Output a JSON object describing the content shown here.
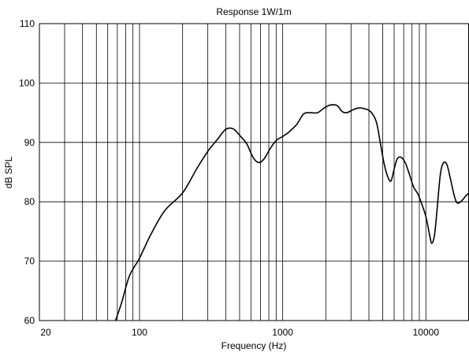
{
  "chart_data": {
    "type": "line",
    "title": "Response 1W/1m",
    "xlabel": "Frequency (Hz)",
    "ylabel": "dB SPL",
    "xscale": "log",
    "xlim": [
      20,
      20000
    ],
    "ylim": [
      60,
      110
    ],
    "grid": true,
    "x_tick_labels": [
      "20",
      "100",
      "1000",
      "10000"
    ],
    "y_tick_labels": [
      "60",
      "70",
      "80",
      "90",
      "100",
      "110"
    ],
    "series": [
      {
        "color": "#000000",
        "x": [
          68,
          75,
          85,
          100,
          120,
          150,
          200,
          250,
          300,
          350,
          400,
          450,
          500,
          560,
          620,
          680,
          740,
          820,
          900,
          1000,
          1100,
          1250,
          1400,
          1550,
          1750,
          1950,
          2150,
          2400,
          2600,
          2800,
          3100,
          3400,
          3700,
          4100,
          4500,
          4800,
          5100,
          5400,
          5700,
          6000,
          6300,
          6700,
          7200,
          7700,
          8200,
          8800,
          9300,
          10000,
          10600,
          11000,
          11500,
          12000,
          12600,
          13200,
          14000,
          14800,
          15600,
          16300,
          17000,
          18000,
          19000,
          20000
        ],
        "y": [
          60,
          63,
          67.5,
          70.5,
          74.5,
          78.5,
          81.5,
          85.5,
          88.5,
          90.5,
          92.2,
          92.3,
          91.2,
          89.8,
          87.5,
          86.6,
          87.2,
          89,
          90.3,
          91,
          91.7,
          93,
          94.8,
          95,
          95,
          95.8,
          96.3,
          96.2,
          95.2,
          95,
          95.5,
          95.8,
          95.7,
          95.2,
          93.5,
          90,
          86.5,
          84.3,
          83.5,
          85.5,
          87.2,
          87.5,
          86.5,
          84.5,
          82.5,
          81.3,
          79.8,
          77.5,
          74.5,
          73,
          74.5,
          79,
          84.5,
          86.5,
          86.3,
          84,
          81.5,
          80,
          79.8,
          80.3,
          81,
          81.5
        ]
      }
    ]
  }
}
